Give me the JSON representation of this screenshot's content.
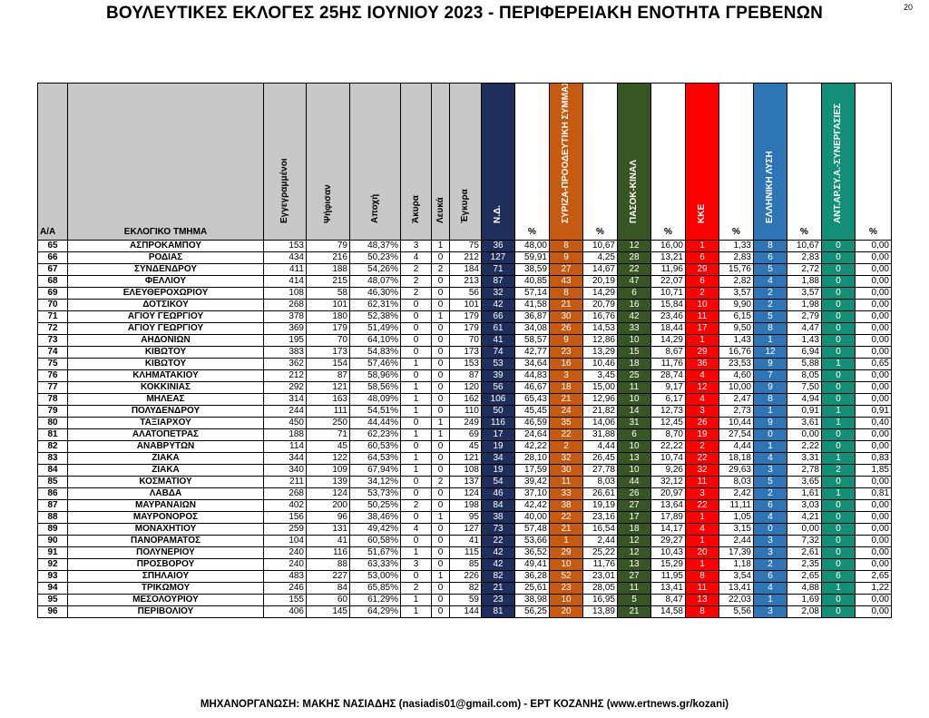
{
  "title": "ΒΟΥΛΕΥΤΙΚΕΣ ΕΚΛΟΓΕΣ 25ΗΣ ΙΟΥΝΙΟΥ 2023 - ΠΕΡΙΦΕΡΕΙΑΚΗ ΕΝΟΤΗΤΑ ΓΡΕΒΕΝΩΝ",
  "page_number": "20",
  "footer": "ΜΗΧΑΝΟΡΓΑΝΩΣΗ: ΜΑΚΗΣ ΝΑΣΙΑΔΗΣ (nasiadis01@gmail.com) - ΕΡΤ ΚΟΖΑΝΗΣ (www.ertnews.gr/kozani)",
  "colors": {
    "nd": "#1f2f5b",
    "syriza": "#c65a11",
    "pasok": "#375623",
    "kke": "#ff0000",
    "elliniki": "#2e75b6",
    "antarsya": "#148f77"
  },
  "headers": {
    "aa": "Α/Α",
    "tmima": "ΕΚΛΟΓΙΚΟ ΤΜΗΜΑ",
    "eggegrammenoi": "Εγγεγραμμένοι",
    "psifisan": "Ψήφισαν",
    "apoxi": "Αποχή",
    "akyra": "Άκυρα",
    "lefka": "Λευκά",
    "egkyra": "Έγκυρα",
    "nd": "Ν.Δ.",
    "syriza": "ΣΥΡΙΖΑ-ΠΡΟΟΔΕΥΤΙΚΗ ΣΥΜΜΑΧΙΑ",
    "pasok": "ΠΑΣΟΚ-ΚΙΝΑΛ",
    "kke": "ΚΚΕ",
    "elliniki": "ΕΛΛΗΝΙΚΗ ΛΥΣΗ",
    "antarsya": "ΑΝΤ.ΑΡ.ΣΥ.Α.-ΣΥΝΕΡΓΑΣΙΕΣ",
    "pct": "%"
  },
  "rows": [
    [
      "65",
      "ΑΣΠΡΟΚΑΜΠΟΥ",
      "153",
      "79",
      "48,37%",
      "3",
      "1",
      "75",
      "36",
      "48,00",
      "8",
      "10,67",
      "12",
      "16,00",
      "1",
      "1,33",
      "8",
      "10,67",
      "0",
      "0,00"
    ],
    [
      "66",
      "ΡΟΔΙΑΣ",
      "434",
      "216",
      "50,23%",
      "4",
      "0",
      "212",
      "127",
      "59,91",
      "9",
      "4,25",
      "28",
      "13,21",
      "6",
      "2,83",
      "6",
      "2,83",
      "0",
      "0,00"
    ],
    [
      "67",
      "ΣΥΝΔΕΝΔΡΟΥ",
      "411",
      "188",
      "54,26%",
      "2",
      "2",
      "184",
      "71",
      "38,59",
      "27",
      "14,67",
      "22",
      "11,96",
      "29",
      "15,76",
      "5",
      "2,72",
      "0",
      "0,00"
    ],
    [
      "68",
      "ΦΕΛΛΙΟΥ",
      "414",
      "215",
      "48,07%",
      "2",
      "0",
      "213",
      "87",
      "40,85",
      "43",
      "20,19",
      "47",
      "22,07",
      "6",
      "2,82",
      "4",
      "1,88",
      "0",
      "0,00"
    ],
    [
      "69",
      "ΕΛΕΥΘΕΡΟΧΩΡΙΟΥ",
      "108",
      "58",
      "46,30%",
      "2",
      "0",
      "56",
      "32",
      "57,14",
      "8",
      "14,29",
      "6",
      "10,71",
      "2",
      "3,57",
      "2",
      "3,57",
      "0",
      "0,00"
    ],
    [
      "70",
      "ΔΟΤΣΙΚΟΥ",
      "268",
      "101",
      "62,31%",
      "0",
      "0",
      "101",
      "42",
      "41,58",
      "21",
      "20,79",
      "16",
      "15,84",
      "10",
      "9,90",
      "2",
      "1,98",
      "0",
      "0,00"
    ],
    [
      "71",
      "ΑΓΙΟΥ ΓΕΩΡΓΙΟΥ",
      "378",
      "180",
      "52,38%",
      "0",
      "1",
      "179",
      "66",
      "36,87",
      "30",
      "16,76",
      "42",
      "23,46",
      "11",
      "6,15",
      "5",
      "2,79",
      "0",
      "0,00"
    ],
    [
      "72",
      "ΑΓΙΟΥ ΓΕΩΡΓΙΟΥ",
      "369",
      "179",
      "51,49%",
      "0",
      "0",
      "179",
      "61",
      "34,08",
      "26",
      "14,53",
      "33",
      "18,44",
      "17",
      "9,50",
      "8",
      "4,47",
      "0",
      "0,00"
    ],
    [
      "73",
      "ΑΗΔΟΝΙΩΝ",
      "195",
      "70",
      "64,10%",
      "0",
      "0",
      "70",
      "41",
      "58,57",
      "9",
      "12,86",
      "10",
      "14,29",
      "1",
      "1,43",
      "1",
      "1,43",
      "0",
      "0,00"
    ],
    [
      "74",
      "ΚΙΒΩΤΟΥ",
      "383",
      "173",
      "54,83%",
      "0",
      "0",
      "173",
      "74",
      "42,77",
      "23",
      "13,29",
      "15",
      "8,67",
      "29",
      "16,76",
      "12",
      "6,94",
      "0",
      "0,00"
    ],
    [
      "75",
      "ΚΙΒΩΤΟΥ",
      "362",
      "154",
      "57,46%",
      "1",
      "0",
      "153",
      "53",
      "34,64",
      "16",
      "10,46",
      "18",
      "11,76",
      "36",
      "23,53",
      "9",
      "5,88",
      "1",
      "0,65"
    ],
    [
      "76",
      "ΚΛΗΜΑΤΑΚΙΟΥ",
      "212",
      "87",
      "58,96%",
      "0",
      "0",
      "87",
      "39",
      "44,83",
      "3",
      "3,45",
      "25",
      "28,74",
      "4",
      "4,60",
      "7",
      "8,05",
      "0",
      "0,00"
    ],
    [
      "77",
      "ΚΟΚΚΙΝΙΑΣ",
      "292",
      "121",
      "58,56%",
      "1",
      "0",
      "120",
      "56",
      "46,67",
      "18",
      "15,00",
      "11",
      "9,17",
      "12",
      "10,00",
      "9",
      "7,50",
      "0",
      "0,00"
    ],
    [
      "78",
      "ΜΗΛΕΑΣ",
      "314",
      "163",
      "48,09%",
      "1",
      "0",
      "162",
      "106",
      "65,43",
      "21",
      "12,96",
      "10",
      "6,17",
      "4",
      "2,47",
      "8",
      "4,94",
      "0",
      "0,00"
    ],
    [
      "79",
      "ΠΟΛΥΔΕΝΔΡΟΥ",
      "244",
      "111",
      "54,51%",
      "1",
      "0",
      "110",
      "50",
      "45,45",
      "24",
      "21,82",
      "14",
      "12,73",
      "3",
      "2,73",
      "1",
      "0,91",
      "1",
      "0,91"
    ],
    [
      "80",
      "ΤΑΞΙΑΡΧΟΥ",
      "450",
      "250",
      "44,44%",
      "0",
      "1",
      "249",
      "116",
      "46,59",
      "35",
      "14,06",
      "31",
      "12,45",
      "26",
      "10,44",
      "9",
      "3,61",
      "1",
      "0,40"
    ],
    [
      "81",
      "ΑΛΑΤΟΠΕΤΡΑΣ",
      "188",
      "71",
      "62,23%",
      "1",
      "1",
      "69",
      "17",
      "24,64",
      "22",
      "31,88",
      "6",
      "8,70",
      "19",
      "27,54",
      "0",
      "0,00",
      "0",
      "0,00"
    ],
    [
      "82",
      "ΑΝΑΒΡΥΤΩΝ",
      "114",
      "45",
      "60,53%",
      "0",
      "0",
      "45",
      "19",
      "42,22",
      "2",
      "4,44",
      "10",
      "22,22",
      "2",
      "4,44",
      "1",
      "2,22",
      "0",
      "0,00"
    ],
    [
      "83",
      "ΖΙΑΚΑ",
      "344",
      "122",
      "64,53%",
      "1",
      "0",
      "121",
      "34",
      "28,10",
      "32",
      "26,45",
      "13",
      "10,74",
      "22",
      "18,18",
      "4",
      "3,31",
      "1",
      "0,83"
    ],
    [
      "84",
      "ΖΙΑΚΑ",
      "340",
      "109",
      "67,94%",
      "1",
      "0",
      "108",
      "19",
      "17,59",
      "30",
      "27,78",
      "10",
      "9,26",
      "32",
      "29,63",
      "3",
      "2,78",
      "2",
      "1,85"
    ],
    [
      "85",
      "ΚΟΣΜΑΤΙΟΥ",
      "211",
      "139",
      "34,12%",
      "0",
      "2",
      "137",
      "54",
      "39,42",
      "11",
      "8,03",
      "44",
      "32,12",
      "11",
      "8,03",
      "5",
      "3,65",
      "0",
      "0,00"
    ],
    [
      "86",
      "ΛΑΒΔΑ",
      "268",
      "124",
      "53,73%",
      "0",
      "0",
      "124",
      "46",
      "37,10",
      "33",
      "26,61",
      "26",
      "20,97",
      "3",
      "2,42",
      "2",
      "1,61",
      "1",
      "0,81"
    ],
    [
      "87",
      "ΜΑΥΡΑΝΑΙΩΝ",
      "402",
      "200",
      "50,25%",
      "2",
      "0",
      "198",
      "84",
      "42,42",
      "38",
      "19,19",
      "27",
      "13,64",
      "22",
      "11,11",
      "6",
      "3,03",
      "0",
      "0,00"
    ],
    [
      "88",
      "ΜΑΥΡΟΝΟΡΟΣ",
      "156",
      "96",
      "38,46%",
      "0",
      "1",
      "95",
      "38",
      "40,00",
      "22",
      "23,16",
      "17",
      "17,89",
      "1",
      "1,05",
      "4",
      "4,21",
      "0",
      "0,00"
    ],
    [
      "89",
      "ΜΟΝΑΧΗΤΙΟΥ",
      "259",
      "131",
      "49,42%",
      "4",
      "0",
      "127",
      "73",
      "57,48",
      "21",
      "16,54",
      "18",
      "14,17",
      "4",
      "3,15",
      "0",
      "0,00",
      "0",
      "0,00"
    ],
    [
      "90",
      "ΠΑΝΟΡΑΜΑΤΟΣ",
      "104",
      "41",
      "60,58%",
      "0",
      "0",
      "41",
      "22",
      "53,66",
      "1",
      "2,44",
      "12",
      "29,27",
      "1",
      "2,44",
      "3",
      "7,32",
      "0",
      "0,00"
    ],
    [
      "91",
      "ΠΟΛΥΝΕΡΙΟΥ",
      "240",
      "116",
      "51,67%",
      "1",
      "0",
      "115",
      "42",
      "36,52",
      "29",
      "25,22",
      "12",
      "10,43",
      "20",
      "17,39",
      "3",
      "2,61",
      "0",
      "0,00"
    ],
    [
      "92",
      "ΠΡΟΣΒΟΡΟΥ",
      "240",
      "88",
      "63,33%",
      "3",
      "0",
      "85",
      "42",
      "49,41",
      "10",
      "11,76",
      "13",
      "15,29",
      "1",
      "1,18",
      "2",
      "2,35",
      "0",
      "0,00"
    ],
    [
      "93",
      "ΣΠΗΛΑΙΟΥ",
      "483",
      "227",
      "53,00%",
      "0",
      "1",
      "226",
      "82",
      "36,28",
      "52",
      "23,01",
      "27",
      "11,95",
      "8",
      "3,54",
      "6",
      "2,65",
      "6",
      "2,65"
    ],
    [
      "94",
      "ΤΡΙΚΩΜΟΥ",
      "246",
      "84",
      "65,85%",
      "2",
      "0",
      "82",
      "21",
      "25,61",
      "23",
      "28,05",
      "11",
      "13,41",
      "11",
      "13,41",
      "4",
      "4,88",
      "1",
      "1,22"
    ],
    [
      "95",
      "ΜΕΣΟΛΟΥΡΙΟΥ",
      "155",
      "60",
      "61,29%",
      "1",
      "0",
      "59",
      "23",
      "38,98",
      "10",
      "16,95",
      "5",
      "8,47",
      "13",
      "22,03",
      "1",
      "1,69",
      "0",
      "0,00"
    ],
    [
      "96",
      "ΠΕΡΙΒΟΛΙΟΥ",
      "406",
      "145",
      "64,29%",
      "1",
      "0",
      "144",
      "81",
      "56,25",
      "20",
      "13,89",
      "21",
      "14,58",
      "8",
      "5,56",
      "3",
      "2,08",
      "0",
      "0,00"
    ]
  ]
}
